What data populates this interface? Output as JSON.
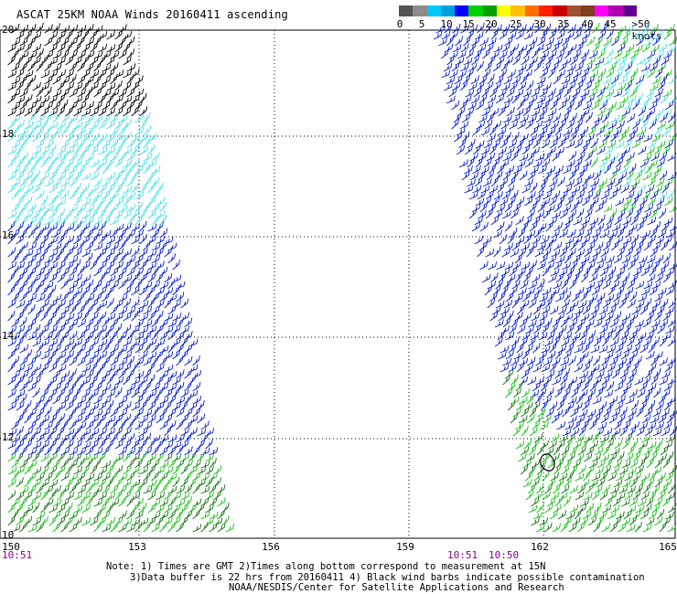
{
  "title": "ASCAT 25KM NOAA Winds 20160411 ascending",
  "colorbar": {
    "labels": [
      "0",
      "5",
      "10",
      "15",
      "20",
      "25",
      "30",
      "35",
      "40",
      "45",
      ">50 knots"
    ],
    "colors": [
      "#555555",
      "#8c8c8c",
      "#00c8ff",
      "#00a0e0",
      "#0000ff",
      "#00d000",
      "#00a000",
      "#ffff00",
      "#ffc000",
      "#ff7000",
      "#ff2000",
      "#c80000",
      "#a05030",
      "#804020",
      "#ff00ff",
      "#b000b0",
      "#600090"
    ]
  },
  "map": {
    "lat_labels": [
      "20",
      "18",
      "16",
      "14",
      "12",
      "10"
    ],
    "lon_labels": [
      "150",
      "153",
      "156",
      "159",
      "162",
      "165"
    ],
    "time_labels": [
      "10:51",
      "10:51",
      "10:50"
    ],
    "legend_colors": {
      "black_contamination": "#000000",
      "light_blue": "#40e0e8",
      "blue": "#0018d0",
      "green": "#10c010",
      "dark_green": "#107010"
    }
  },
  "chart_data": {
    "type": "map",
    "title": "ASCAT 25KM NOAA Winds 20160411 ascending",
    "lat_range": [
      10,
      20
    ],
    "lon_range": [
      150,
      165
    ],
    "variable": "wind speed (knots)",
    "colorbar_ticks": [
      0,
      5,
      10,
      15,
      20,
      25,
      30,
      35,
      40,
      45,
      50
    ]
  },
  "notes": {
    "line1": "Note: 1) Times are GMT 2)Times along bottom correspond to measurement at 15N",
    "line2": "3)Data buffer is 22 hrs from 20160411 4) Black wind barbs indicate possible contamination",
    "line3": "NOAA/NESDIS/Center for Satellite Applications and Research"
  }
}
